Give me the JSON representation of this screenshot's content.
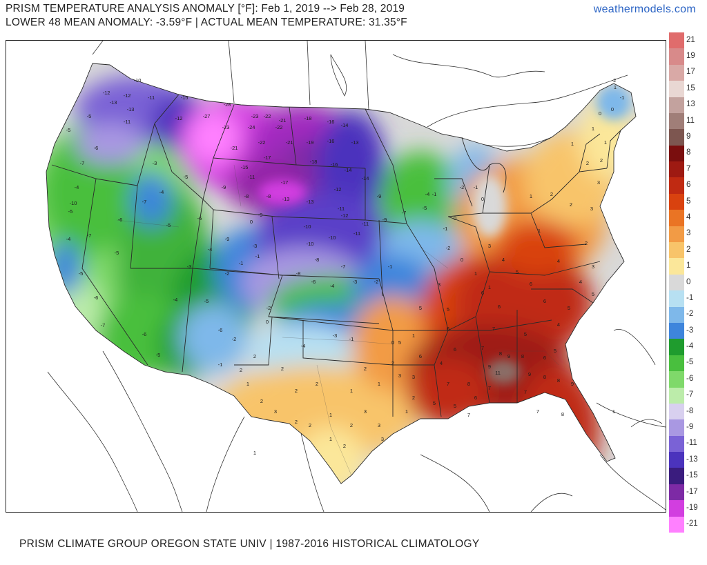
{
  "header": {
    "line1": "PRISM TEMPERATURE ANALYSIS ANOMALY [°F]: Feb 1, 2019 --> Feb 28, 2019",
    "line2": "LOWER 48 MEAN ANOMALY: -3.59°F | ACTUAL MEAN TEMPERATURE: 31.35°F",
    "brand": "weathermodels.com"
  },
  "footer": {
    "text": "PRISM CLIMATE GROUP OREGON STATE UNIV | 1987-2016 HISTORICAL CLIMATOLOGY"
  },
  "legend": {
    "labels": [
      "21",
      "19",
      "17",
      "15",
      "13",
      "11",
      "9",
      "8",
      "7",
      "6",
      "5",
      "4",
      "3",
      "2",
      "1",
      "0",
      "-1",
      "-2",
      "-3",
      "-4",
      "-5",
      "-6",
      "-7",
      "-8",
      "-9",
      "-11",
      "-13",
      "-15",
      "-17",
      "-19",
      "-21"
    ],
    "colors": [
      "#e06c6c",
      "#d88a8a",
      "#d9a9a6",
      "#e9d7d3",
      "#c3a29e",
      "#a07e78",
      "#7d5650",
      "#7a0e0e",
      "#9e1a12",
      "#c02a12",
      "#d9420f",
      "#ea7424",
      "#f29b45",
      "#f8c46a",
      "#fbe79a",
      "#d9d9d9",
      "#b7e0f2",
      "#7eb8ea",
      "#3e85dc",
      "#1f9c2e",
      "#49bf3e",
      "#7fd96a",
      "#bcecaa",
      "#d8d0ef",
      "#a998e2",
      "#7a62d6",
      "#4b33bd",
      "#3a1c7e",
      "#7d2aa5",
      "#d23ee0",
      "#ff80ff"
    ]
  },
  "map": {
    "anomaly_labels": [
      {
        "v": "-10"
      },
      {
        "v": "-12"
      },
      {
        "v": "-13"
      },
      {
        "v": "-15"
      },
      {
        "v": "-28"
      },
      {
        "v": "-23"
      },
      {
        "v": "-22"
      },
      {
        "v": "-21"
      },
      {
        "v": "-18"
      },
      {
        "v": "-16"
      },
      {
        "v": "-14"
      },
      {
        "v": "-27"
      },
      {
        "v": "-24"
      },
      {
        "v": "-19"
      },
      {
        "v": "-17"
      },
      {
        "v": "-11"
      },
      {
        "v": "-9"
      },
      {
        "v": "-8"
      },
      {
        "v": "-7"
      },
      {
        "v": "-6"
      },
      {
        "v": "-5"
      },
      {
        "v": "-4"
      },
      {
        "v": "-3"
      },
      {
        "v": "-2"
      },
      {
        "v": "-1"
      },
      {
        "v": "0"
      },
      {
        "v": "1"
      },
      {
        "v": "2"
      },
      {
        "v": "3"
      },
      {
        "v": "4"
      },
      {
        "v": "5"
      },
      {
        "v": "6"
      },
      {
        "v": "7"
      },
      {
        "v": "8"
      },
      {
        "v": "9"
      },
      {
        "v": "11"
      }
    ]
  }
}
